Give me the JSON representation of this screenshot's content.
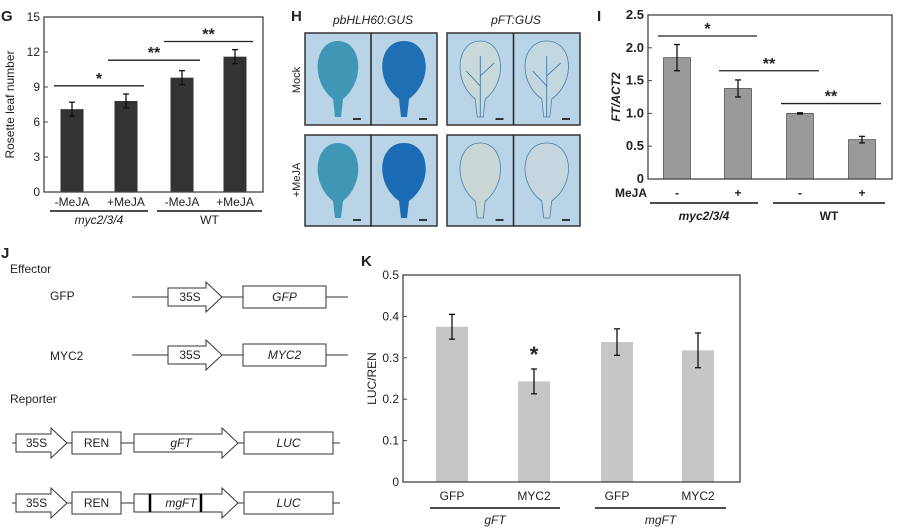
{
  "panels": {
    "G": "G",
    "H": "H",
    "I": "I",
    "J": "J",
    "K": "K"
  },
  "panel_h": {
    "columns": [
      "pbHLH60:GUS",
      "pFT:GUS"
    ],
    "rows": [
      "Mock",
      "+MeJA"
    ]
  },
  "panel_j": {
    "effector_heading": "Effector",
    "reporter_heading": "Reporter",
    "effectors": [
      {
        "name": "GFP",
        "promoter": "35S",
        "gene": "GFP"
      },
      {
        "name": "MYC2",
        "promoter": "35S",
        "gene": "MYC2"
      }
    ],
    "reporters": [
      {
        "promoter": "35S",
        "control": "REN",
        "insert": "gFT",
        "reporter": "LUC"
      },
      {
        "promoter": "35S",
        "control": "REN",
        "insert": "mgFT",
        "reporter": "LUC"
      }
    ]
  },
  "colors": {
    "G_bar": "#333333",
    "I_bar": "#9a9a9a",
    "K_bar": "#c6c6c6",
    "gus_blue": "#2f86bf"
  },
  "chart_data": [
    {
      "panel": "G",
      "type": "bar",
      "title": "",
      "ylabel": "Rosette leaf number",
      "xlabel": "",
      "ylim": [
        0,
        15
      ],
      "yticks": [
        0,
        3,
        6,
        9,
        12,
        15
      ],
      "ytick_labels": [
        "0",
        "3",
        "6",
        "9",
        "12",
        "15"
      ],
      "categories": [
        "-MeJA",
        "+MeJA",
        "-MeJA",
        "+MeJA"
      ],
      "values": [
        7.1,
        7.8,
        9.8,
        11.6
      ],
      "errors": [
        0.6,
        0.6,
        0.6,
        0.6
      ],
      "groups": [
        {
          "label": "myc2/3/4",
          "italic": true,
          "bars": [
            0,
            1
          ]
        },
        {
          "label": "WT",
          "italic": false,
          "bars": [
            2,
            3
          ]
        }
      ],
      "significance": [
        {
          "from": 0,
          "to": 1,
          "y": 9.1,
          "label": "*"
        },
        {
          "from": 1,
          "to": 2,
          "y": 11.3,
          "label": "**"
        },
        {
          "from": 2,
          "to": 3,
          "y": 12.9,
          "label": "**"
        }
      ]
    },
    {
      "panel": "I",
      "type": "bar",
      "title": "",
      "ylabel": "FT/ACT2",
      "xlabel": "",
      "row_label": "MeJA",
      "ylim": [
        0,
        2.5
      ],
      "yticks": [
        0,
        0.5,
        1.0,
        1.5,
        2.0,
        2.5
      ],
      "ytick_labels": [
        "0",
        "0.5",
        "1.0",
        "1.5",
        "2.0",
        "2.5"
      ],
      "categories": [
        "-",
        "+",
        "-",
        "+"
      ],
      "values": [
        1.85,
        1.38,
        1.0,
        0.6
      ],
      "errors": [
        0.2,
        0.13,
        0.01,
        0.05
      ],
      "groups": [
        {
          "label": "myc2/3/4",
          "italic": true,
          "bars": [
            0,
            1
          ]
        },
        {
          "label": "WT",
          "italic": false,
          "bars": [
            2,
            3
          ]
        }
      ],
      "significance": [
        {
          "from": 0,
          "to": 1,
          "y": 2.18,
          "label": "*"
        },
        {
          "from": 1,
          "to": 2,
          "y": 1.65,
          "label": "**"
        },
        {
          "from": 2,
          "to": 3,
          "y": 1.15,
          "label": "**"
        }
      ]
    },
    {
      "panel": "K",
      "type": "bar",
      "title": "",
      "ylabel": "LUC/REN",
      "xlabel": "",
      "ylim": [
        0,
        0.5
      ],
      "yticks": [
        0,
        0.1,
        0.2,
        0.3,
        0.4,
        0.5
      ],
      "ytick_labels": [
        "0",
        "0.1",
        "0.2",
        "0.3",
        "0.4",
        "0.5"
      ],
      "categories": [
        "GFP",
        "MYC2",
        "GFP",
        "MYC2"
      ],
      "values": [
        0.375,
        0.243,
        0.338,
        0.318
      ],
      "errors": [
        0.03,
        0.03,
        0.032,
        0.042
      ],
      "groups": [
        {
          "label": "gFT",
          "italic": true,
          "bars": [
            0,
            1
          ]
        },
        {
          "label": "mgFT",
          "italic": true,
          "bars": [
            2,
            3
          ]
        }
      ],
      "significance": [
        {
          "from": 1,
          "to": 1,
          "y": 0.29,
          "label": "*"
        }
      ]
    }
  ]
}
